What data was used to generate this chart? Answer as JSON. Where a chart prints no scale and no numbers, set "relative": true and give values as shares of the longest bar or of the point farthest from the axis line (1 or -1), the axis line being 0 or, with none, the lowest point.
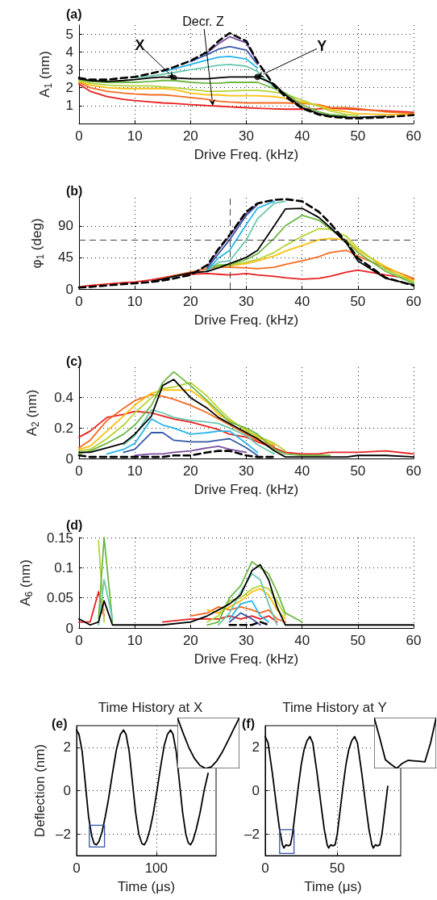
{
  "chart_data": [
    {
      "type": "line",
      "xlabel": "Drive Freq. (kHz)",
      "ylabel": "A$_{1}$ (nm)",
      "annotations": [
        "(a)",
        {
          "text": "X",
          "x": 17,
          "y": 2.55
        },
        {
          "text": "Y",
          "x": 32,
          "y": 2.6
        },
        {
          "text": "Decr. Z",
          "x": 24,
          "y": 0.99
        }
      ],
      "xlim": [
        0,
        60
      ],
      "xticks": [
        0,
        10,
        20,
        30,
        40,
        50,
        60
      ],
      "ylim": [
        0,
        5.5
      ],
      "yticks": [
        1,
        2,
        3,
        4,
        5
      ],
      "grid": true,
      "marker": "none",
      "line_style": "solid",
      "x": [
        0,
        2,
        5,
        8,
        10,
        13,
        15,
        17,
        20,
        23,
        25,
        27,
        30,
        32,
        35,
        37,
        40,
        43,
        45,
        48,
        50,
        55,
        60
      ],
      "series": [
        {
          "color": "#e8201f",
          "values": [
            2.2,
            1.8,
            1.5,
            1.35,
            1.28,
            1.2,
            1.15,
            1.12,
            1.05,
            1.0,
            0.97,
            0.93,
            0.88,
            0.85,
            0.82,
            0.8,
            0.8,
            0.82,
            0.85,
            0.82,
            0.78,
            0.7,
            0.63
          ]
        },
        {
          "color": "#f26b21",
          "values": [
            2.3,
            2.0,
            1.8,
            1.7,
            1.65,
            1.6,
            1.6,
            1.55,
            1.45,
            1.35,
            1.25,
            1.2,
            1.15,
            1.15,
            1.15,
            1.15,
            1.12,
            1.05,
            0.9,
            0.88,
            0.84,
            0.65,
            0.56
          ]
        },
        {
          "color": "#fcc00f",
          "values": [
            2.35,
            2.15,
            2.0,
            1.95,
            1.95,
            1.95,
            1.95,
            1.9,
            1.7,
            1.6,
            1.6,
            1.55,
            1.55,
            1.55,
            1.5,
            1.4,
            1.2,
            1.0,
            0.8,
            0.65,
            0.55,
            0.5,
            0.5
          ]
        },
        {
          "color": "#b5d334",
          "values": [
            2.4,
            2.25,
            2.15,
            2.1,
            2.1,
            2.1,
            2.05,
            2.0,
            1.9,
            1.8,
            1.8,
            1.82,
            1.85,
            1.85,
            1.75,
            1.65,
            1.3,
            0.95,
            0.7,
            0.5,
            0.45,
            null,
            null
          ]
        },
        {
          "color": "#6cb843",
          "values": [
            2.45,
            2.35,
            2.3,
            2.3,
            2.3,
            2.35,
            2.4,
            2.4,
            2.3,
            2.25,
            2.25,
            2.3,
            2.3,
            2.3,
            1.95,
            1.7,
            1.05,
            0.65,
            0.5,
            0.42,
            null,
            null,
            null
          ]
        },
        {
          "color": "#6ac7b0",
          "values": [
            null,
            null,
            null,
            null,
            2.55,
            2.65,
            2.75,
            2.85,
            3.0,
            3.15,
            3.25,
            3.3,
            3.2,
            2.9,
            2.0,
            null,
            null,
            null,
            null,
            null,
            null,
            null,
            null
          ]
        },
        {
          "color": "#27b5e8",
          "values": [
            null,
            null,
            null,
            null,
            null,
            null,
            2.9,
            3.05,
            3.3,
            3.55,
            3.7,
            3.75,
            3.6,
            3.1,
            null,
            null,
            null,
            null,
            null,
            null,
            null,
            null,
            null
          ]
        },
        {
          "color": "#3659a8",
          "values": [
            null,
            null,
            null,
            null,
            null,
            null,
            null,
            null,
            3.45,
            3.85,
            4.15,
            4.3,
            4.1,
            3.3,
            null,
            null,
            null,
            null,
            null,
            null,
            null,
            null,
            null
          ]
        },
        {
          "color": "#7a4fa0",
          "values": [
            null,
            null,
            null,
            null,
            null,
            null,
            null,
            null,
            null,
            3.95,
            4.45,
            4.85,
            4.5,
            3.4,
            null,
            null,
            null,
            null,
            null,
            null,
            null,
            null,
            null
          ]
        },
        {
          "color": "#000000",
          "values": [
            2.5,
            2.4,
            2.35,
            2.4,
            2.45,
            2.55,
            2.6,
            2.55,
            2.5,
            2.5,
            2.55,
            2.6,
            2.6,
            2.6,
            2.2,
            1.6,
            0.9,
            0.55,
            0.42,
            0.35,
            0.34,
            0.4,
            null
          ]
        },
        {
          "color": "#000000",
          "line_style": "dashed",
          "values": [
            2.55,
            2.45,
            2.45,
            2.55,
            2.6,
            2.8,
            2.95,
            3.15,
            3.5,
            4.0,
            4.6,
            5.05,
            4.6,
            3.45,
            2.1,
            1.5,
            0.85,
            0.5,
            0.38,
            0.3,
            0.28,
            0.35,
            0.47
          ]
        },
        {
          "type": "scatter",
          "marker": "circle",
          "color": "#000000",
          "x": [
            17,
            32
          ],
          "values": [
            2.55,
            2.6
          ]
        }
      ]
    },
    {
      "type": "line",
      "xlabel": "Drive Freq. (kHz)",
      "ylabel": "φ$_{1}$ (deg)",
      "annotations": [
        "(b)"
      ],
      "xlim": [
        0,
        60
      ],
      "xticks": [
        0,
        10,
        20,
        30,
        40,
        50,
        60
      ],
      "ylim": [
        0,
        130
      ],
      "yticks": [
        0,
        45,
        90
      ],
      "grid": true,
      "marker": "none",
      "line_style": "solid",
      "ref_lines": [
        {
          "axis": "x",
          "value": 27,
          "color": "#444444",
          "line_style": "dashed"
        },
        {
          "axis": "y",
          "value": 70,
          "color": "#444444",
          "line_style": "dashed"
        }
      ],
      "x": [
        0,
        2,
        5,
        8,
        10,
        13,
        15,
        17,
        20,
        23,
        25,
        27,
        30,
        32,
        35,
        37,
        40,
        43,
        45,
        48,
        50,
        55,
        60
      ],
      "series": [
        {
          "color": "#e8201f",
          "values": [
            3,
            5,
            7,
            9,
            10,
            13,
            16,
            19,
            21,
            22,
            21,
            20,
            22,
            20,
            18,
            16,
            14,
            15,
            18,
            24,
            27,
            20,
            14
          ]
        },
        {
          "color": "#f26b21",
          "values": [
            null,
            null,
            null,
            null,
            null,
            null,
            15,
            19,
            24,
            29,
            31,
            31,
            30,
            29,
            31,
            35,
            40,
            46,
            52,
            55,
            47,
            30,
            15
          ]
        },
        {
          "color": "#fcc00f",
          "values": [
            null,
            null,
            null,
            null,
            null,
            null,
            null,
            null,
            null,
            31,
            33,
            33,
            36,
            40,
            47,
            54,
            62,
            70,
            72,
            70,
            55,
            32,
            12
          ]
        },
        {
          "color": "#b5d334",
          "values": [
            null,
            null,
            null,
            null,
            null,
            null,
            null,
            null,
            null,
            35,
            32,
            34,
            38,
            42,
            52,
            62,
            75,
            86,
            85,
            75,
            58,
            28,
            10
          ]
        },
        {
          "color": "#6cb843",
          "values": [
            null,
            null,
            null,
            null,
            null,
            null,
            null,
            null,
            null,
            28,
            34,
            35,
            42,
            50,
            72,
            90,
            105,
            98,
            86,
            68,
            52,
            25,
            8
          ]
        },
        {
          "color": "#6ac7b0",
          "values": [
            null,
            null,
            null,
            null,
            null,
            null,
            null,
            null,
            null,
            26,
            38,
            40,
            70,
            100,
            122,
            125,
            null,
            null,
            null,
            null,
            null,
            null,
            null
          ]
        },
        {
          "color": "#27b5e8",
          "values": [
            null,
            null,
            null,
            null,
            null,
            null,
            null,
            null,
            null,
            27,
            44,
            55,
            92,
            115,
            125,
            null,
            null,
            null,
            null,
            null,
            null,
            null,
            null
          ]
        },
        {
          "color": "#3659a8",
          "values": [
            null,
            null,
            null,
            null,
            null,
            null,
            null,
            null,
            null,
            30,
            50,
            70,
            105,
            120,
            null,
            null,
            null,
            null,
            null,
            null,
            null,
            null,
            null
          ]
        },
        {
          "color": "#7a4fa0",
          "values": [
            null,
            null,
            null,
            null,
            null,
            null,
            null,
            null,
            null,
            32,
            55,
            75,
            108,
            121,
            null,
            null,
            null,
            null,
            null,
            null,
            null,
            null,
            null
          ]
        },
        {
          "color": "#000000",
          "values": [
            null,
            null,
            null,
            null,
            null,
            11,
            14,
            18,
            23,
            25,
            30,
            36,
            45,
            55,
            90,
            114,
            115,
            102,
            88,
            65,
            40,
            15,
            6
          ]
        },
        {
          "color": "#000000",
          "line_style": "dashed",
          "values": [
            2,
            3,
            5,
            7,
            8,
            10,
            12,
            15,
            20,
            34,
            57,
            77,
            110,
            122,
            127,
            128,
            125,
            110,
            94,
            66,
            44,
            16,
            5
          ]
        }
      ]
    },
    {
      "type": "line",
      "xlabel": "Drive Freq. (kHz)",
      "ylabel": "A$_{2}$ (nm)",
      "annotations": [
        "(c)"
      ],
      "xlim": [
        0,
        60
      ],
      "xticks": [
        0,
        10,
        20,
        30,
        40,
        50,
        60
      ],
      "ylim": [
        0,
        0.6
      ],
      "yticks": [
        0,
        0.2,
        0.4
      ],
      "grid": true,
      "marker": "none",
      "line_style": "solid",
      "x": [
        0,
        2,
        5,
        8,
        10,
        13,
        15,
        17,
        20,
        23,
        25,
        27,
        30,
        32,
        35,
        37,
        40,
        43,
        45,
        48,
        50,
        55,
        60
      ],
      "series": [
        {
          "color": "#e8201f",
          "values": [
            0.14,
            0.18,
            0.27,
            0.29,
            0.31,
            0.3,
            0.28,
            0.26,
            0.24,
            0.21,
            0.19,
            0.16,
            0.14,
            0.11,
            0.07,
            0.04,
            0.03,
            0.03,
            0.04,
            0.04,
            0.04,
            0.05,
            0.03
          ]
        },
        {
          "color": "#f26b21",
          "values": [
            0.07,
            0.12,
            0.25,
            0.33,
            0.38,
            0.42,
            0.41,
            0.39,
            0.35,
            0.3,
            0.26,
            0.22,
            0.16,
            0.12,
            0.08,
            null,
            null,
            null,
            null,
            null,
            null,
            null,
            null
          ]
        },
        {
          "color": "#fcc00f",
          "values": [
            0.06,
            0.08,
            0.18,
            0.28,
            0.35,
            0.43,
            0.45,
            0.45,
            0.45,
            0.37,
            0.29,
            0.25,
            0.19,
            0.14,
            0.09,
            null,
            null,
            null,
            null,
            null,
            null,
            null,
            null
          ]
        },
        {
          "color": "#b5d334",
          "values": [
            0.05,
            0.06,
            0.13,
            0.22,
            0.3,
            0.4,
            0.46,
            0.47,
            0.5,
            0.41,
            0.33,
            0.26,
            0.18,
            0.15,
            0.1,
            0.05,
            null,
            null,
            null,
            null,
            null,
            null,
            null
          ]
        },
        {
          "color": "#6cb843",
          "values": [
            0.03,
            0.05,
            0.1,
            0.16,
            0.22,
            0.35,
            0.5,
            0.57,
            0.48,
            0.38,
            0.31,
            0.24,
            0.2,
            0.16,
            0.06,
            0.03,
            0.02,
            0.02,
            0.02,
            null,
            null,
            null,
            null
          ]
        },
        {
          "color": "#6ac7b0",
          "values": [
            null,
            null,
            null,
            0.09,
            0.15,
            0.32,
            0.3,
            0.27,
            0.25,
            0.24,
            0.23,
            0.2,
            0.15,
            0.09,
            0.03,
            null,
            null,
            null,
            null,
            null,
            null,
            null,
            null
          ]
        },
        {
          "color": "#27b5e8",
          "values": [
            null,
            null,
            0.03,
            0.06,
            0.1,
            0.26,
            0.22,
            0.2,
            0.16,
            0.17,
            0.18,
            0.18,
            0.1,
            0.04,
            null,
            null,
            null,
            null,
            null,
            null,
            null,
            null,
            null
          ]
        },
        {
          "color": "#3659a8",
          "values": [
            null,
            null,
            null,
            0.04,
            0.06,
            0.17,
            0.17,
            0.12,
            0.11,
            0.11,
            0.12,
            0.13,
            0.07,
            0.02,
            null,
            null,
            null,
            null,
            null,
            null,
            null,
            null,
            null
          ]
        },
        {
          "color": "#7a4fa0",
          "values": [
            null,
            null,
            null,
            null,
            0.02,
            0.03,
            0.03,
            0.04,
            0.05,
            0.07,
            0.08,
            0.06,
            0.04,
            null,
            null,
            null,
            null,
            null,
            null,
            null,
            null,
            null,
            null
          ]
        },
        {
          "color": "#000000",
          "values": [
            0.04,
            0.04,
            0.07,
            0.1,
            0.16,
            0.28,
            0.48,
            0.52,
            0.4,
            0.33,
            0.27,
            0.23,
            0.17,
            0.13,
            0.05,
            0.01,
            0.01,
            0.01,
            0.01,
            0.01,
            0.02,
            0.02,
            0.01
          ]
        },
        {
          "color": "#000000",
          "line_style": "dashed",
          "values": [
            0.02,
            0.01,
            0.01,
            0.01,
            0.01,
            0.01,
            0.01,
            0.02,
            0.02,
            0.04,
            0.05,
            0.05,
            0.02,
            0.01,
            0.01,
            null,
            null,
            null,
            null,
            null,
            null,
            null,
            null
          ]
        }
      ]
    },
    {
      "type": "line",
      "xlabel": "Drive Freq. (kHz)",
      "ylabel": "A$_{6}$ (nm)",
      "annotations": [
        "(d)"
      ],
      "xlim": [
        0,
        60
      ],
      "xticks": [
        0,
        10,
        20,
        30,
        40,
        50,
        60
      ],
      "ylim": [
        0,
        0.15
      ],
      "yticks": [
        0,
        0.05,
        0.1,
        0.15
      ],
      "grid": true,
      "marker": "none",
      "line_style": "solid",
      "x": [
        0,
        2,
        3.5,
        4.5,
        6,
        10,
        15,
        20,
        23,
        25,
        27,
        29,
        31,
        32.5,
        34,
        35.5,
        37,
        40,
        45,
        50,
        55,
        60
      ],
      "series": [
        {
          "color": "#e8201f",
          "values": [
            0.01,
            0.01,
            0.06,
            0.02,
            null,
            null,
            0.01,
            0.015,
            0.015,
            0.015,
            0.02,
            0.015,
            0.02,
            0.015,
            0.02,
            0.01,
            null,
            null,
            null,
            null,
            null,
            null
          ]
        },
        {
          "color": "#f26b21",
          "values": [
            null,
            null,
            0.02,
            0.03,
            null,
            null,
            null,
            0.02,
            0.025,
            0.035,
            0.03,
            0.035,
            0.03,
            0.025,
            0.03,
            0.015,
            0.01,
            null,
            null,
            null,
            null,
            null
          ]
        },
        {
          "color": "#fcc00f",
          "values": [
            null,
            null,
            null,
            null,
            null,
            null,
            null,
            null,
            0.03,
            0.025,
            0.035,
            0.045,
            0.06,
            0.065,
            0.055,
            0.03,
            0.015,
            null,
            null,
            null,
            null,
            null
          ]
        },
        {
          "color": "#b5d334",
          "values": [
            null,
            null,
            0.145,
            0.01,
            null,
            null,
            null,
            null,
            0.01,
            0.02,
            0.045,
            0.05,
            0.065,
            0.07,
            0.065,
            0.045,
            0.02,
            null,
            null,
            null,
            null,
            null
          ]
        },
        {
          "color": "#6cb843",
          "values": [
            null,
            null,
            0.015,
            0.15,
            0.01,
            null,
            null,
            null,
            0.005,
            0.01,
            0.05,
            0.07,
            0.11,
            0.1,
            0.09,
            0.06,
            0.025,
            0.01,
            null,
            null,
            null,
            null
          ]
        },
        {
          "color": "#6ac7b0",
          "values": [
            null,
            null,
            0.005,
            0.08,
            0.015,
            null,
            null,
            null,
            null,
            0.005,
            0.025,
            0.06,
            0.09,
            0.08,
            0.04,
            0.005,
            null,
            null,
            null,
            null,
            null,
            null
          ]
        },
        {
          "color": "#27b5e8",
          "values": [
            null,
            null,
            null,
            null,
            null,
            null,
            null,
            null,
            null,
            null,
            0.015,
            0.04,
            0.045,
            0.02,
            0.01,
            null,
            null,
            null,
            null,
            null,
            null,
            null
          ]
        },
        {
          "color": "#3659a8",
          "values": [
            null,
            null,
            null,
            null,
            null,
            null,
            null,
            null,
            null,
            null,
            0.01,
            0.025,
            0.015,
            0.005,
            null,
            null,
            null,
            null,
            null,
            null,
            null,
            null
          ]
        },
        {
          "color": "#000000",
          "values": [
            0.015,
            0.005,
            0.01,
            0.045,
            0.005,
            0.005,
            0.005,
            0.01,
            0.02,
            0.03,
            0.04,
            0.055,
            0.095,
            0.105,
            0.08,
            0.035,
            0.005,
            0.005,
            0.005,
            0.005,
            0.005,
            0.005
          ]
        },
        {
          "color": "#000000",
          "line_style": "dashed",
          "values": [
            null,
            null,
            null,
            null,
            null,
            null,
            null,
            null,
            null,
            null,
            0.005,
            0.005,
            0.005,
            0.01,
            0.005,
            null,
            null,
            null,
            null,
            null,
            null,
            null
          ]
        }
      ]
    },
    {
      "type": "line",
      "title": "Time History at X",
      "xlabel": "Time (μs)",
      "ylabel": "Deflection (nm)",
      "annotations": [
        "(e)"
      ],
      "xlim": [
        0,
        175
      ],
      "xticks": [
        0,
        100
      ],
      "ylim": [
        -3,
        3
      ],
      "yticks": [
        {
          "value": -2,
          "label": "–2"
        },
        0,
        2
      ],
      "grid": true,
      "marker": "none",
      "line_style": "solid",
      "x": [
        0,
        3,
        7,
        11,
        15,
        19,
        22,
        25,
        28,
        32,
        36,
        40,
        45,
        50,
        55,
        59,
        62,
        66,
        70,
        74,
        78,
        82,
        85,
        88,
        92,
        96,
        100,
        105,
        110,
        114,
        118,
        121,
        125,
        129,
        133,
        137,
        140,
        143,
        146,
        150,
        155,
        160,
        165
      ],
      "series": [
        {
          "color": "#000000",
          "values": [
            2.8,
            2.6,
            1.8,
            0.3,
            -1.2,
            -2.1,
            -2.45,
            -2.5,
            -2.35,
            -1.9,
            -1.2,
            -0.4,
            0.8,
            1.9,
            2.6,
            2.8,
            2.6,
            1.8,
            0.4,
            -1.0,
            -2.0,
            -2.45,
            -2.5,
            -2.3,
            -1.8,
            -1.1,
            -0.2,
            1.0,
            2.1,
            2.6,
            2.8,
            2.6,
            1.8,
            0.4,
            -1.0,
            -2.0,
            -2.4,
            -2.5,
            -2.3,
            -1.8,
            -1.0,
            0,
            0.8
          ]
        }
      ]
    },
    {
      "type": "line",
      "relative": true,
      "marker": "none",
      "line_style": "solid",
      "categories": [
        null,
        null,
        null,
        null,
        null,
        null,
        null,
        null,
        null,
        null,
        null,
        null
      ],
      "series": [
        {
          "color": "#000000",
          "values": [
            1,
            0.7,
            0.42,
            0.2,
            0.06,
            0,
            0.03,
            0.15,
            0.33,
            0.55,
            0.78,
            1
          ]
        }
      ]
    },
    {
      "type": "line",
      "title": "Time History at Y",
      "xlabel": "Time (μs)",
      "annotations": [
        "(f)"
      ],
      "xlim": [
        0,
        94
      ],
      "xticks": [
        0,
        50
      ],
      "ylim": [
        -3,
        3
      ],
      "yticks": [
        {
          "value": -2,
          "label": "–2"
        },
        0,
        2
      ],
      "grid": true,
      "marker": "none",
      "line_style": "solid",
      "x": [
        0,
        2,
        5,
        8,
        10,
        12,
        13,
        14.5,
        16,
        17.5,
        19,
        21,
        23,
        25,
        27,
        29,
        31,
        33,
        36,
        39,
        41,
        43,
        44,
        45.5,
        47,
        48.5,
        50,
        52,
        54,
        56,
        58,
        60,
        62,
        64,
        67,
        70,
        72,
        74,
        75,
        76.5,
        78,
        79.5,
        81,
        83,
        85
      ],
      "series": [
        {
          "color": "#000000",
          "values": [
            2.5,
            2.2,
            0.8,
            -0.8,
            -1.8,
            -2.5,
            -2.65,
            -2.5,
            -2.55,
            -2.5,
            -2.0,
            -0.9,
            0.2,
            1.2,
            1.9,
            2.3,
            2.5,
            2.2,
            0.8,
            -0.8,
            -1.8,
            -2.5,
            -2.65,
            -2.5,
            -2.55,
            -2.5,
            -2.0,
            -0.9,
            0.2,
            1.2,
            1.9,
            2.3,
            2.5,
            2.2,
            0.8,
            -0.8,
            -1.8,
            -2.5,
            -2.65,
            -2.5,
            -2.55,
            -2.5,
            -2.0,
            -0.9,
            0.2
          ]
        }
      ]
    },
    {
      "type": "line",
      "relative": true,
      "marker": "none",
      "line_style": "solid",
      "categories": [
        null,
        null,
        null,
        null,
        null,
        null,
        null,
        null,
        null,
        null,
        null,
        null
      ],
      "series": [
        {
          "color": "#000000",
          "values": [
            1,
            0.6,
            0.17,
            0.08,
            0,
            0.1,
            0.16,
            0.15,
            0.14,
            0.13,
            0.5,
            1
          ]
        }
      ]
    }
  ]
}
